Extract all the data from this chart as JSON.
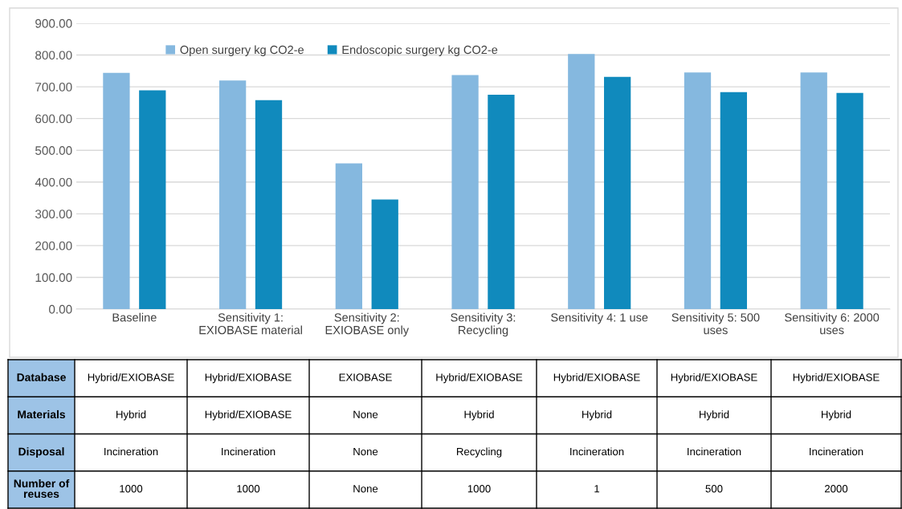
{
  "chart_data": {
    "type": "bar",
    "categories": [
      "Baseline",
      "Sensitivity 1:\nEXIOBASE material",
      "Sensitivity 2:\nEXIOBASE only",
      "Sensitivity 3:\nRecycling",
      "Sensitivity 4: 1 use",
      "Sensitivity 5: 500\nuses",
      "Sensitivity 6: 2000\nuses"
    ],
    "series": [
      {
        "name": "Open surgery kg CO2-e",
        "color": "#85b8df",
        "values": [
          744,
          720,
          459,
          737,
          803,
          745,
          745
        ]
      },
      {
        "name": "Endoscopic surgery kg CO2-e",
        "color": "#108abd",
        "values": [
          689,
          658,
          345,
          675,
          731,
          683,
          681
        ]
      }
    ],
    "ylim": [
      0,
      900
    ],
    "yticks": [
      {
        "value": 0,
        "label": "0.00"
      },
      {
        "value": 100,
        "label": "100.00"
      },
      {
        "value": 200,
        "label": "200.00"
      },
      {
        "value": 300,
        "label": "300.00"
      },
      {
        "value": 400,
        "label": "400.00"
      },
      {
        "value": 500,
        "label": "500.00"
      },
      {
        "value": 600,
        "label": "600.00"
      },
      {
        "value": 700,
        "label": "700.00"
      },
      {
        "value": 800,
        "label": "800.00"
      },
      {
        "value": 900,
        "label": "900.00"
      }
    ],
    "grid": "y",
    "legend": "top",
    "annotations": [
      "Database",
      "Hybrid/EXIOBASE",
      "Hybrid/EXIOBASE",
      "EXIOBASE",
      "Hybrid/EXIOBASE",
      "Hybrid/EXIOBASE",
      "Hybrid/EXIOBASE",
      "Hybrid/EXIOBASE",
      "Materials",
      "Hybrid",
      "Hybrid/EXIOBASE",
      "None",
      "Hybrid",
      "Hybrid",
      "Hybrid",
      "Hybrid",
      "Disposal",
      "Incineration",
      "Incineration",
      "None",
      "Recycling",
      "Incineration",
      "Incineration",
      "Incineration",
      "Number of\nreuses",
      "1000",
      "1000",
      "None",
      "1000",
      "1",
      "500",
      "2000"
    ]
  }
}
